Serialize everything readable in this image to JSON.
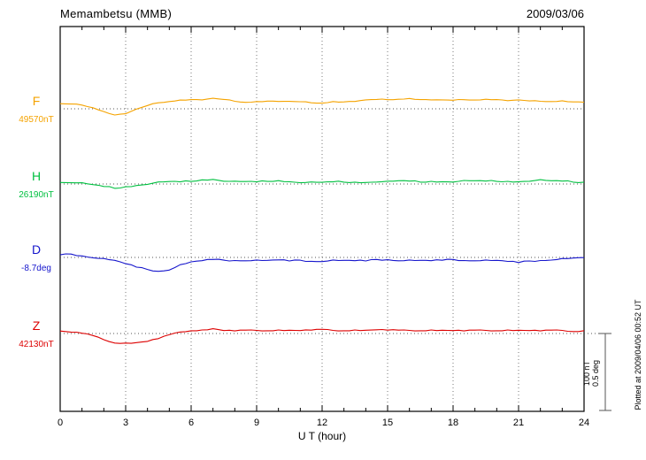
{
  "header": {
    "title": "Memambetsu (MMB)",
    "date": "2009/03/06"
  },
  "axes": {
    "x_label": "U T (hour)",
    "x_ticks": [
      0,
      3,
      6,
      9,
      12,
      15,
      18,
      21,
      24
    ],
    "x_range": [
      0,
      24
    ]
  },
  "scale_bar": {
    "nT_label": "100 nT",
    "deg_label": "0.5 deg",
    "nT": 100,
    "deg": 0.5
  },
  "footer_note": "Plotted at 2009/04/06 00:52 UT",
  "style": {
    "grid_color": "#777777",
    "baseline_color": "#555555",
    "frame_color": "#000000"
  },
  "chart_data": {
    "type": "line",
    "title": "Memambetsu (MMB) magnetogram",
    "date": "2009/03/06",
    "xlabel": "U T (hour)",
    "x_range": [
      0,
      24
    ],
    "x_start": 0,
    "x_step_hours": 0.5,
    "values_are": "deviation from channel baseline (nT for F/H/Z, deg for D)",
    "legend_position": "left",
    "grid": "dotted vertical every 3h, dotted horizontal baseline per channel",
    "series": [
      {
        "name": "F",
        "baseline_label": "49570nT",
        "baseline_value": 49570,
        "unit": "nT",
        "color": "#f5a300",
        "values": [
          6,
          6,
          5,
          2,
          -4,
          -8,
          -6,
          -1,
          4,
          8,
          10,
          11,
          12,
          12,
          13,
          12,
          10,
          9,
          9,
          10,
          10,
          9,
          9,
          8,
          8,
          9,
          9,
          10,
          11,
          12,
          12,
          13,
          13,
          12,
          12,
          11,
          11,
          12,
          12,
          12,
          12,
          11,
          11,
          10,
          10,
          10,
          10,
          9,
          9
        ]
      },
      {
        "name": "H",
        "baseline_label": "26190nT",
        "baseline_value": 26190,
        "unit": "nT",
        "color": "#00c040",
        "values": [
          2,
          2,
          1,
          -1,
          -3,
          -5,
          -4,
          -2,
          0,
          2,
          3,
          3,
          4,
          5,
          6,
          4,
          3,
          3,
          3,
          4,
          4,
          3,
          2,
          2,
          2,
          3,
          3,
          2,
          2,
          3,
          3,
          4,
          4,
          3,
          3,
          3,
          3,
          4,
          4,
          4,
          4,
          3,
          3,
          4,
          5,
          4,
          4,
          3,
          2
        ]
      },
      {
        "name": "D",
        "baseline_label": "-8.7deg",
        "baseline_value": -8.7,
        "unit": "deg",
        "color": "#1515cc",
        "values": [
          0.02,
          0.02,
          0.01,
          0,
          -0.01,
          -0.02,
          -0.04,
          -0.06,
          -0.08,
          -0.09,
          -0.08,
          -0.05,
          -0.03,
          -0.02,
          -0.01,
          -0.02,
          -0.02,
          -0.02,
          -0.02,
          -0.02,
          -0.015,
          -0.02,
          -0.02,
          -0.025,
          -0.025,
          -0.02,
          -0.02,
          -0.02,
          -0.02,
          -0.015,
          -0.015,
          -0.02,
          -0.02,
          -0.02,
          -0.02,
          -0.015,
          -0.015,
          -0.02,
          -0.02,
          -0.02,
          -0.02,
          -0.025,
          -0.03,
          -0.025,
          -0.02,
          -0.015,
          -0.01,
          -0.005,
          0
        ]
      },
      {
        "name": "Z",
        "baseline_label": "42130nT",
        "baseline_value": 42130,
        "unit": "nT",
        "color": "#dd0000",
        "values": [
          3,
          2,
          1,
          -3,
          -8,
          -12,
          -13,
          -12,
          -10,
          -6,
          -2,
          2,
          4,
          4,
          6,
          4,
          4,
          4,
          4,
          4,
          4,
          4,
          4,
          5,
          5,
          4,
          4,
          4,
          4,
          5,
          5,
          4,
          4,
          4,
          4,
          4,
          4,
          4,
          4,
          4,
          4,
          4,
          4,
          4,
          4,
          4,
          4,
          3,
          3
        ]
      }
    ]
  }
}
